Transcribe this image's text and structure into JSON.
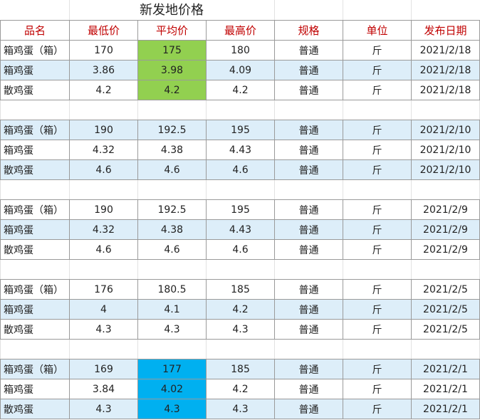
{
  "title": "新发地价格",
  "headers": [
    "品名",
    "最低价",
    "平均价",
    "最高价",
    "规格",
    "单位",
    "发布日期"
  ],
  "colors": {
    "header_text": "#c00000",
    "band": "#ddeef9",
    "highlight_green": "#92d050",
    "highlight_cyan": "#00b0f0"
  },
  "groups": [
    {
      "rows": [
        [
          "箱鸡蛋（箱）",
          "170",
          "175",
          "180",
          "普通",
          "斤",
          "2021/2/18"
        ],
        [
          "箱鸡蛋",
          "3.86",
          "3.98",
          "4.09",
          "普通",
          "斤",
          "2021/2/18"
        ],
        [
          "散鸡蛋",
          "4.2",
          "4.2",
          "4.2",
          "普通",
          "斤",
          "2021/2/18"
        ]
      ]
    },
    {
      "rows": [
        [
          "箱鸡蛋（箱）",
          "190",
          "192.5",
          "195",
          "普通",
          "斤",
          "2021/2/10"
        ],
        [
          "箱鸡蛋",
          "4.32",
          "4.38",
          "4.43",
          "普通",
          "斤",
          "2021/2/10"
        ],
        [
          "散鸡蛋",
          "4.6",
          "4.6",
          "4.6",
          "普通",
          "斤",
          "2021/2/10"
        ]
      ]
    },
    {
      "rows": [
        [
          "箱鸡蛋（箱）",
          "190",
          "192.5",
          "195",
          "普通",
          "斤",
          "2021/2/9"
        ],
        [
          "箱鸡蛋",
          "4.32",
          "4.38",
          "4.43",
          "普通",
          "斤",
          "2021/2/9"
        ],
        [
          "散鸡蛋",
          "4.6",
          "4.6",
          "4.6",
          "普通",
          "斤",
          "2021/2/9"
        ]
      ]
    },
    {
      "rows": [
        [
          "箱鸡蛋（箱）",
          "176",
          "180.5",
          "185",
          "普通",
          "斤",
          "2021/2/5"
        ],
        [
          "箱鸡蛋",
          "4",
          "4.1",
          "4.2",
          "普通",
          "斤",
          "2021/2/5"
        ],
        [
          "散鸡蛋",
          "4.3",
          "4.3",
          "4.3",
          "普通",
          "斤",
          "2021/2/5"
        ]
      ]
    },
    {
      "rows": [
        [
          "箱鸡蛋（箱）",
          "169",
          "177",
          "185",
          "普通",
          "斤",
          "2021/2/1"
        ],
        [
          "箱鸡蛋",
          "3.84",
          "4.02",
          "4.2",
          "普通",
          "斤",
          "2021/2/1"
        ],
        [
          "散鸡蛋",
          "4.3",
          "4.3",
          "4.3",
          "普通",
          "斤",
          "2021/2/1"
        ]
      ]
    }
  ]
}
